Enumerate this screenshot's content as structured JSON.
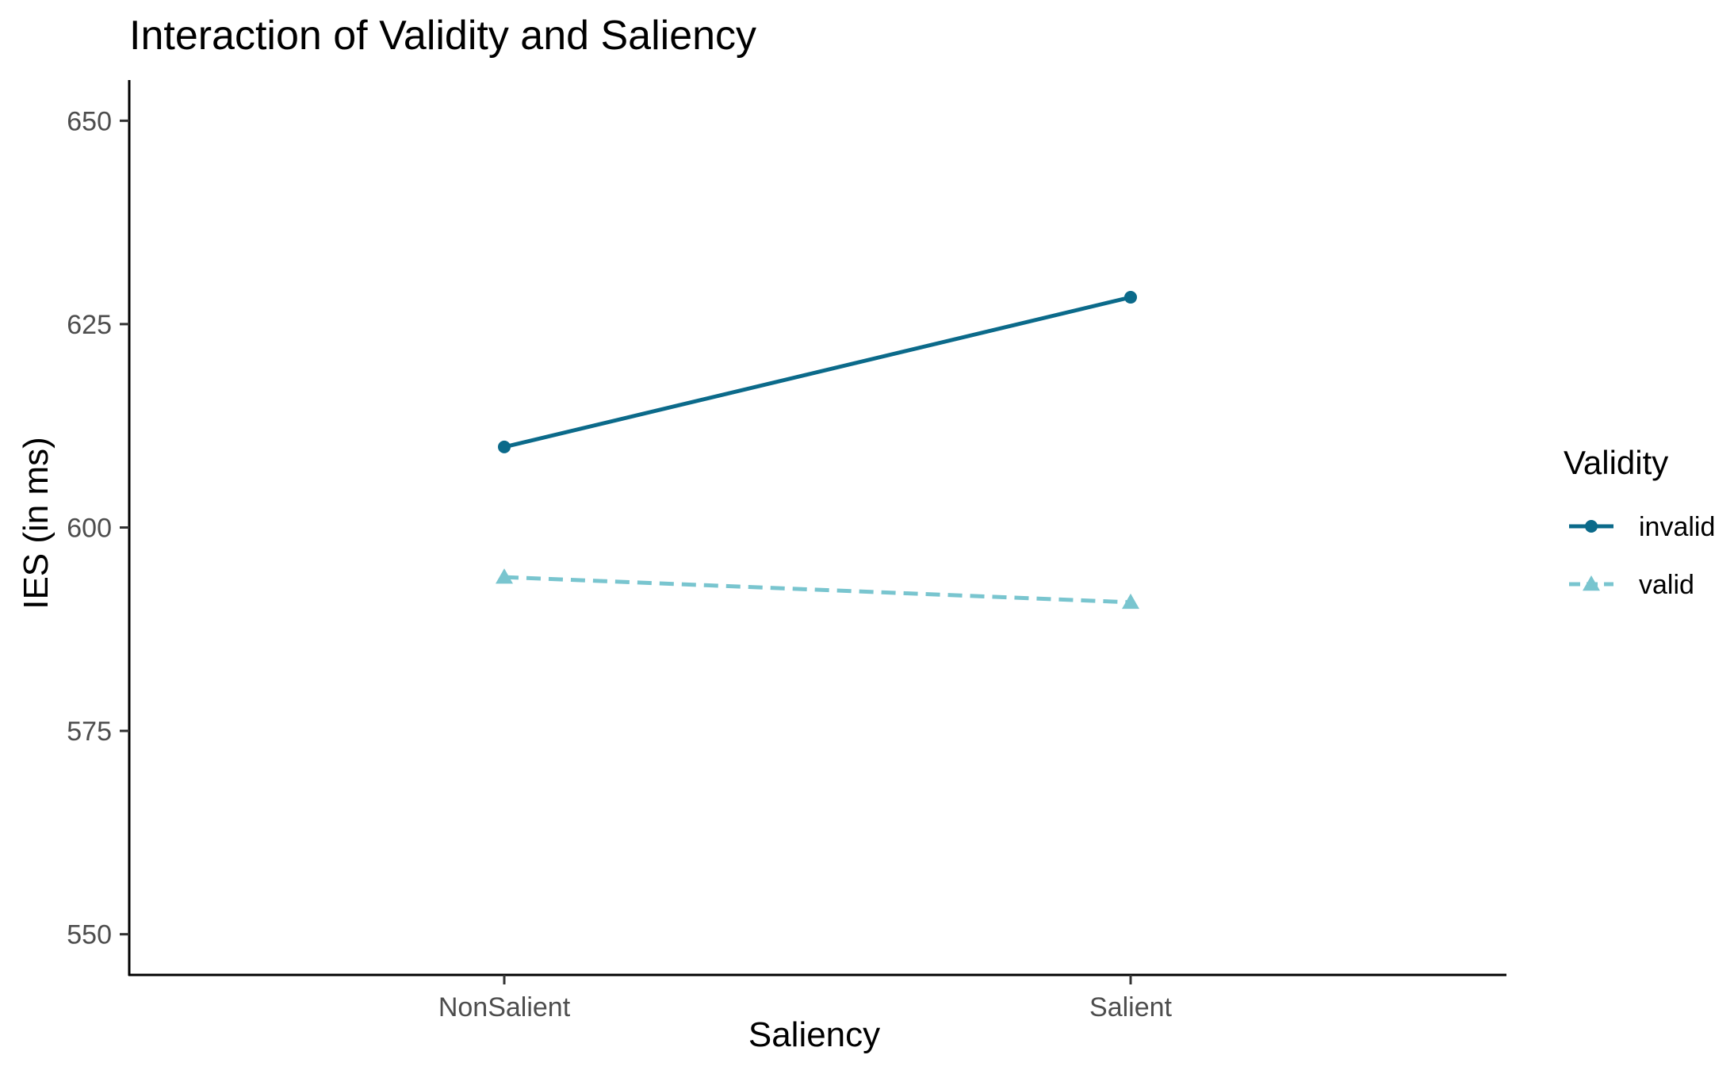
{
  "chart_data": {
    "type": "line",
    "title": "Interaction of Validity and Saliency",
    "xlabel": "Saliency",
    "ylabel": "IES (in ms)",
    "categories": [
      "NonSalient",
      "Salient"
    ],
    "ylim": [
      545,
      655
    ],
    "yticks": [
      550,
      575,
      600,
      625,
      650
    ],
    "grid": false,
    "legend": {
      "title": "Validity",
      "placement": "right"
    },
    "series": [
      {
        "name": "invalid",
        "values": [
          609.9,
          628.3
        ],
        "color": "#0b6a8a",
        "dash": "solid",
        "marker": "circle"
      },
      {
        "name": "valid",
        "values": [
          593.9,
          590.8
        ],
        "color": "#79c5cf",
        "dash": "dashed",
        "marker": "triangle"
      }
    ]
  }
}
